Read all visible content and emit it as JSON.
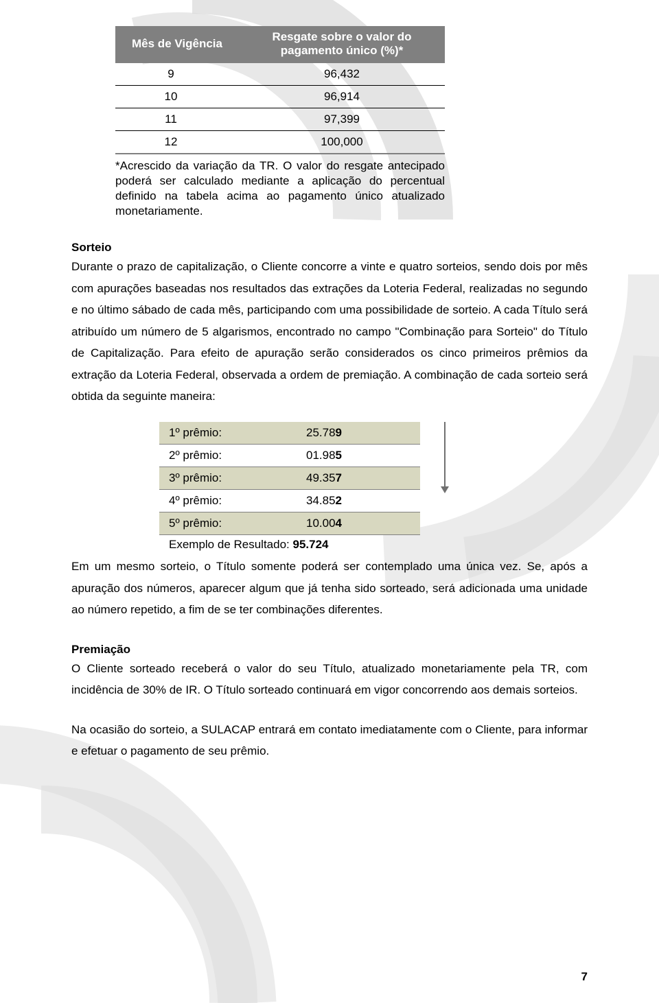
{
  "bg": {
    "ring_color": "#d9d9d9",
    "page_bg": "#ffffff"
  },
  "table1": {
    "headers": [
      "Mês de Vigência",
      "Resgate sobre o valor do pagamento único (%)*"
    ],
    "rows": [
      [
        "9",
        "96,432"
      ],
      [
        "10",
        "96,914"
      ],
      [
        "11",
        "97,399"
      ],
      [
        "12",
        "100,000"
      ]
    ],
    "footnote": "*Acrescido da variação da TR. O valor do resgate antecipado poderá ser calculado mediante a aplicação do percentual definido na tabela acima ao pagamento único atualizado monetariamente."
  },
  "sorteio": {
    "heading": "Sorteio",
    "body": "Durante o prazo de capitalização, o Cliente concorre a vinte e quatro sorteios, sendo dois por mês com apurações baseadas nos resultados das extrações da Loteria Federal, realizadas no segundo e no último sábado de cada mês, participando com uma possibilidade de sorteio. A cada Título será atribuído um número de 5 algarismos, encontrado no campo \"Combinação para Sorteio\" do Título de Capitalização. Para efeito de apuração serão considerados os cinco primeiros prêmios da extração da Loteria Federal, observada a ordem de premiação. A combinação de cada sorteio será obtida da seguinte maneira:"
  },
  "table2": {
    "rows": [
      {
        "label": "1º prêmio:",
        "prefix": "25.78",
        "bold": "9",
        "shaded": true
      },
      {
        "label": "2º prêmio:",
        "prefix": "01.98",
        "bold": "5",
        "shaded": false
      },
      {
        "label": "3º prêmio:",
        "prefix": "49.35",
        "bold": "7",
        "shaded": true
      },
      {
        "label": "4º prêmio:",
        "prefix": "34.85",
        "bold": "2",
        "shaded": false
      },
      {
        "label": "5º prêmio:",
        "prefix": "10.00",
        "bold": "4",
        "shaded": true
      }
    ],
    "result_label": "Exemplo de Resultado: ",
    "result_value": "95.724"
  },
  "after_table2": "Em um mesmo sorteio, o Título somente poderá ser contemplado uma única vez. Se, após a apuração dos números, aparecer algum que já tenha sido sorteado, será adicionada uma unidade ao número repetido, a fim de se ter combinações diferentes.",
  "premiacao": {
    "heading": "Premiação",
    "body1": "O Cliente sorteado receberá o valor do seu Título, atualizado monetariamente pela TR, com incidência de 30% de IR. O Título sorteado continuará em vigor concorrendo aos demais sorteios.",
    "body2": "Na ocasião do sorteio, a SULACAP entrará em contato imediatamente com o Cliente, para informar e efetuar o pagamento de seu prêmio."
  },
  "page_number": "7"
}
